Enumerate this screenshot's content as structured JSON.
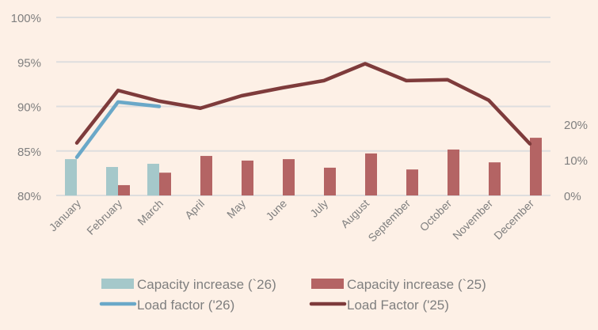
{
  "chart_data": {
    "type": "bar+line",
    "title": "",
    "categories": [
      "January",
      "February",
      "March",
      "April",
      "May",
      "June",
      "July",
      "August",
      "September",
      "October",
      "November",
      "December"
    ],
    "left_axis": {
      "ylim": [
        0.8,
        1.0
      ],
      "ticks": [
        0.8,
        0.85,
        0.9,
        0.95,
        1.0
      ],
      "tick_labels": [
        "80%",
        "85%",
        "90%",
        "95%",
        "100%"
      ],
      "grid": true
    },
    "right_axis": {
      "ylim": [
        0,
        0.5
      ],
      "ticks": [
        0,
        0.1,
        0.2
      ],
      "tick_labels": [
        "0%",
        "10%",
        "20%"
      ]
    },
    "series": [
      {
        "name": "Capacity increase (`26)",
        "type": "bar",
        "axis": "right",
        "color": "#A5C8CA",
        "values": [
          0.102,
          0.08,
          0.089,
          null,
          null,
          null,
          null,
          null,
          null,
          null,
          null,
          null
        ]
      },
      {
        "name": "Capacity increase (`25)",
        "type": "bar",
        "axis": "right",
        "color": "#B46464",
        "values": [
          null,
          0.029,
          0.064,
          0.111,
          0.098,
          0.102,
          0.078,
          0.118,
          0.073,
          0.129,
          0.093,
          0.162
        ]
      },
      {
        "name": "Load factor ('26)",
        "type": "line",
        "axis": "left",
        "color": "#6AA8C8",
        "values": [
          0.843,
          0.905,
          0.9,
          null,
          null,
          null,
          null,
          null,
          null,
          null,
          null,
          null
        ]
      },
      {
        "name": "Load Factor ('25)",
        "type": "line",
        "axis": "left",
        "color": "#7E3B3B",
        "values": [
          0.859,
          0.918,
          0.906,
          0.898,
          0.912,
          0.921,
          0.929,
          0.948,
          0.929,
          0.93,
          0.907,
          0.858
        ]
      }
    ],
    "legend_position": "bottom"
  }
}
